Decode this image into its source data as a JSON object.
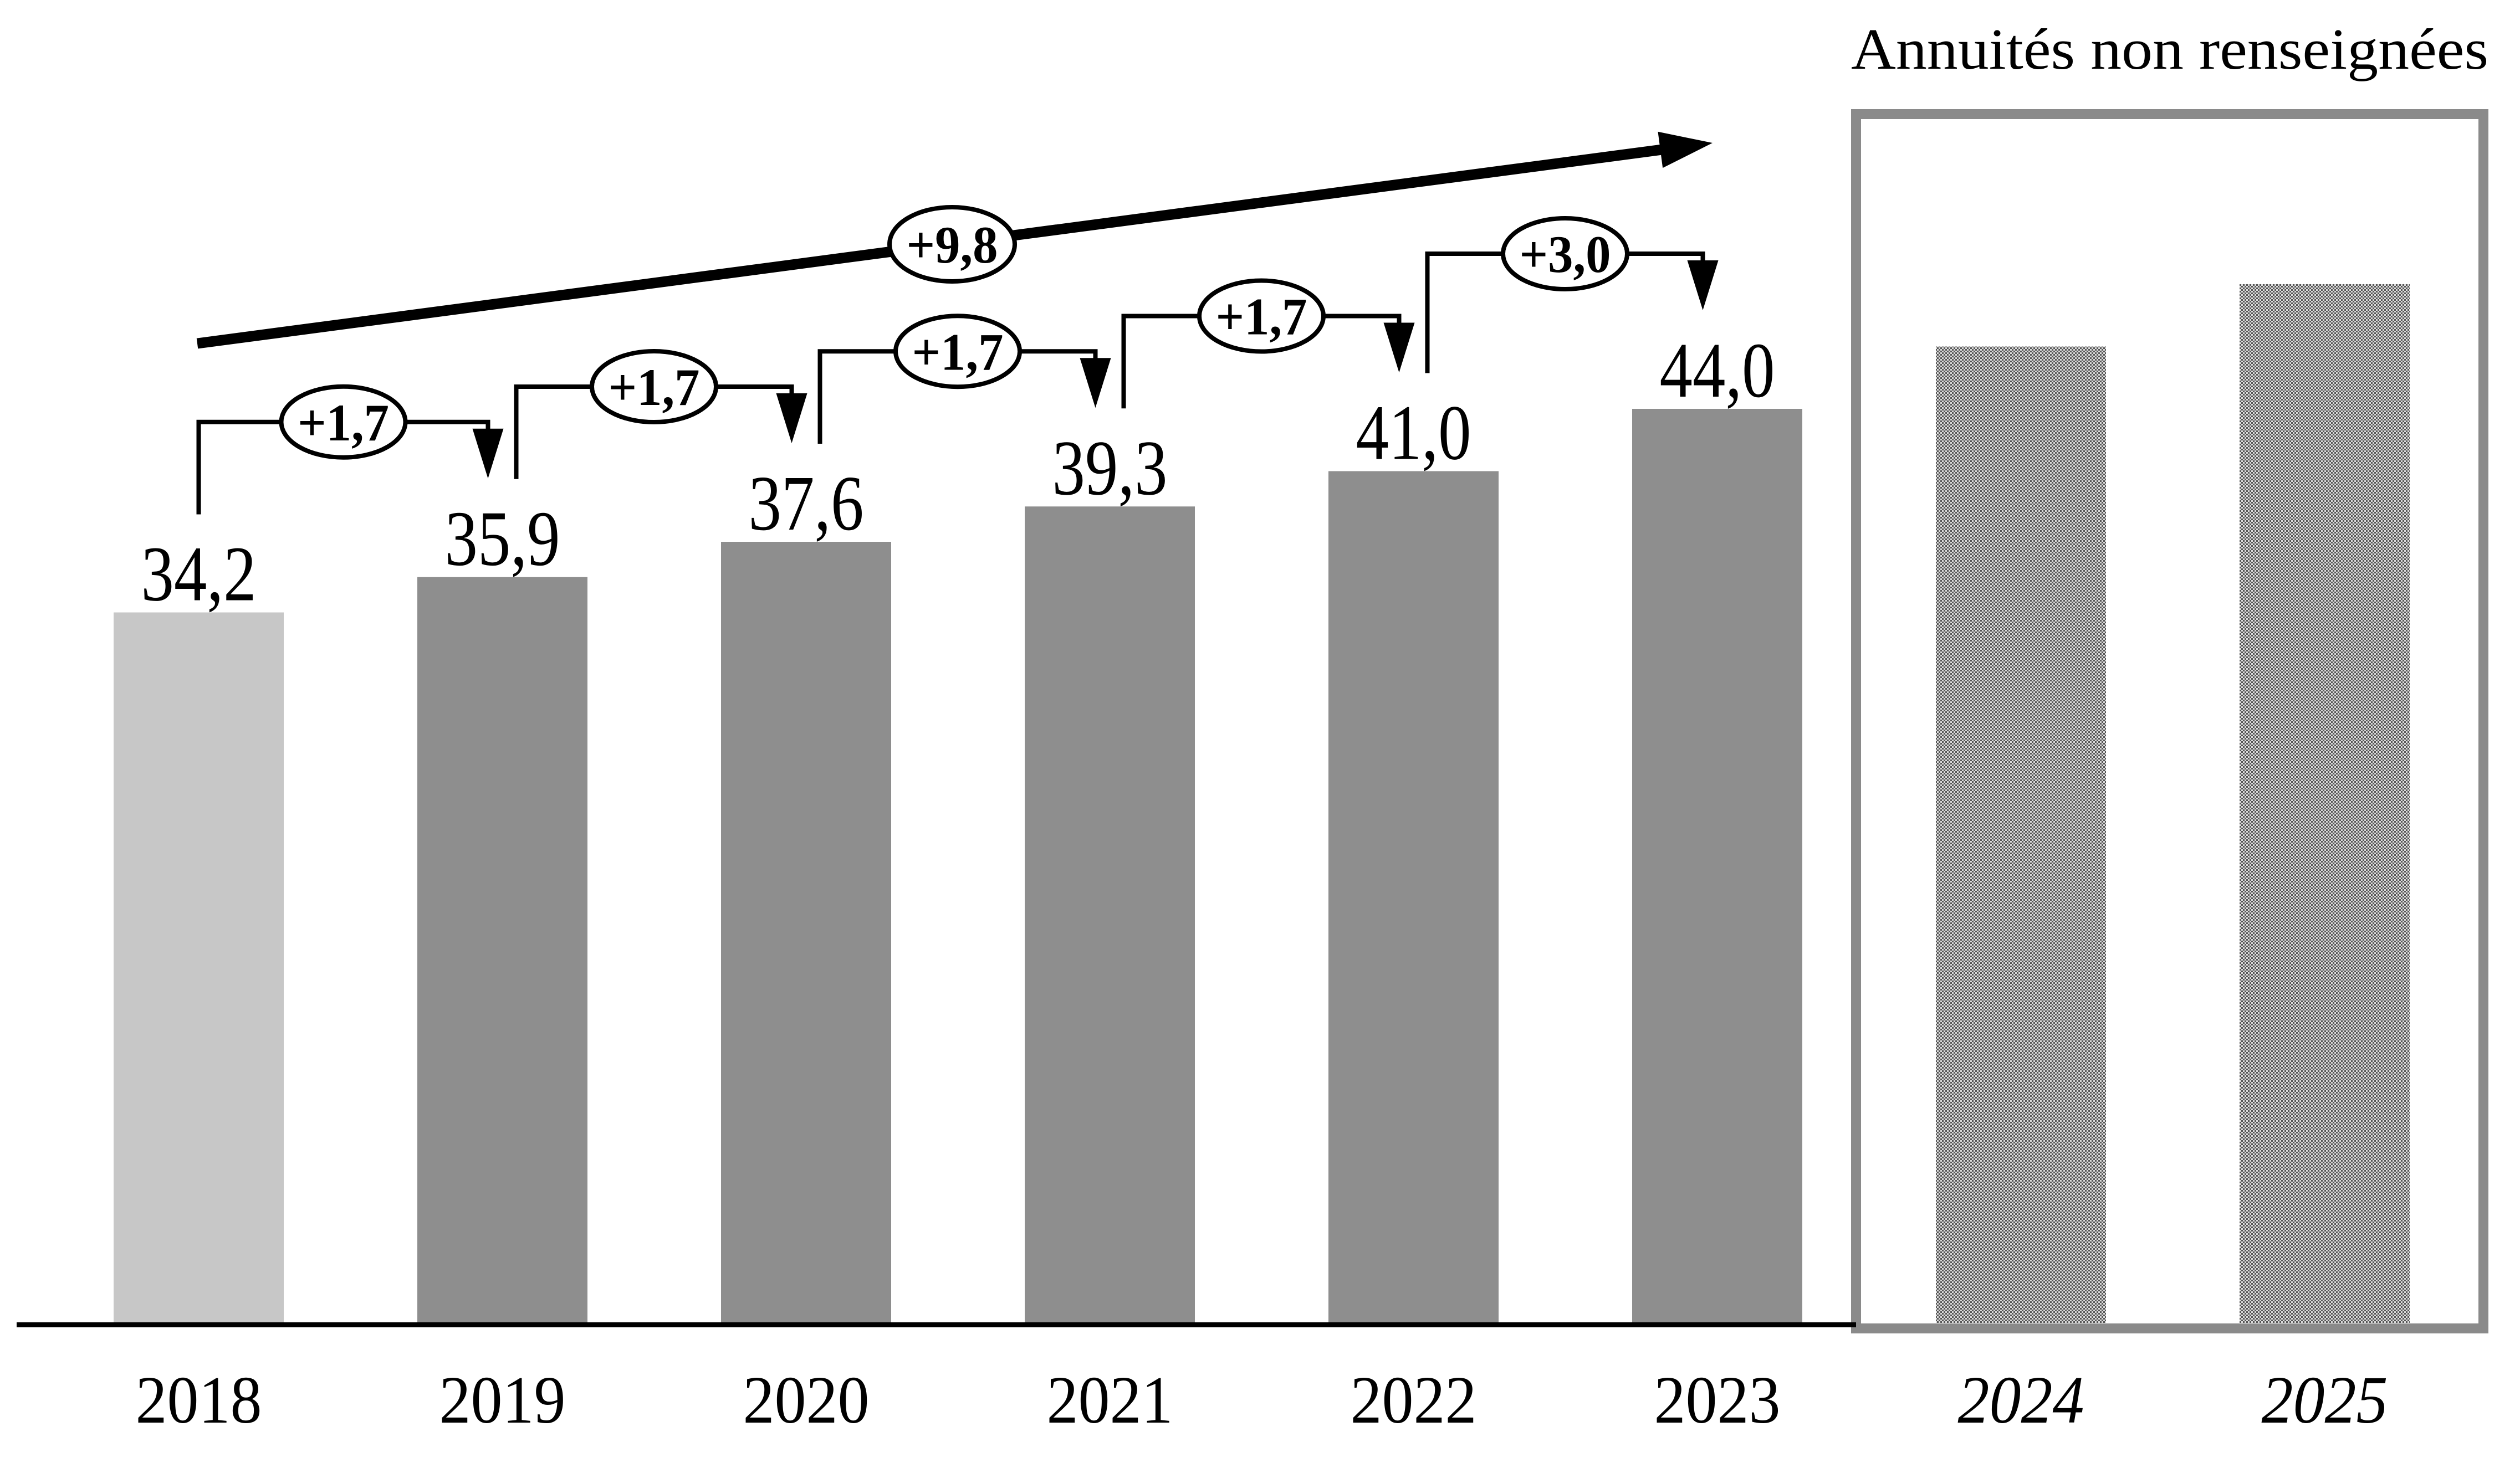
{
  "chart_data": {
    "type": "bar",
    "title": "Annuités non renseignées",
    "xlabel": "",
    "ylabel": "",
    "grid": false,
    "legend_position": "none",
    "ylim": [
      0,
      52
    ],
    "categories": [
      "2018",
      "2019",
      "2020",
      "2021",
      "2022",
      "2023",
      "2024",
      "2025"
    ],
    "values": [
      34.2,
      35.9,
      37.6,
      39.3,
      41.0,
      44.0,
      null,
      null
    ],
    "value_labels": [
      "34,2",
      "35,9",
      "37,6",
      "39,3",
      "41,0",
      "44,0",
      "",
      ""
    ],
    "estimated_values": {
      "2024": 47.0,
      "2025": 50.0
    },
    "increments": [
      {
        "from": "2018",
        "to": "2019",
        "label": "+1,7",
        "value": 1.7
      },
      {
        "from": "2019",
        "to": "2020",
        "label": "+1,7",
        "value": 1.7
      },
      {
        "from": "2020",
        "to": "2021",
        "label": "+1,7",
        "value": 1.7
      },
      {
        "from": "2021",
        "to": "2022",
        "label": "+1,7",
        "value": 1.7
      },
      {
        "from": "2022",
        "to": "2023",
        "label": "+3,0",
        "value": 3.0
      }
    ],
    "trend_arrow": {
      "label": "+9,8",
      "value": 9.8,
      "from": "2018",
      "to": "2023"
    },
    "uncertain_box": {
      "categories": [
        "2024",
        "2025"
      ]
    },
    "colors": {
      "ink": "#000000",
      "first_bar": "#c7c7c7",
      "bar": "#8e8e8e",
      "box_border": "#8a8a8a",
      "oval_fill": "#ffffff",
      "pattern_dark": "#555555",
      "pattern_light": "#dcdcdc",
      "background": "#ffffff"
    }
  }
}
